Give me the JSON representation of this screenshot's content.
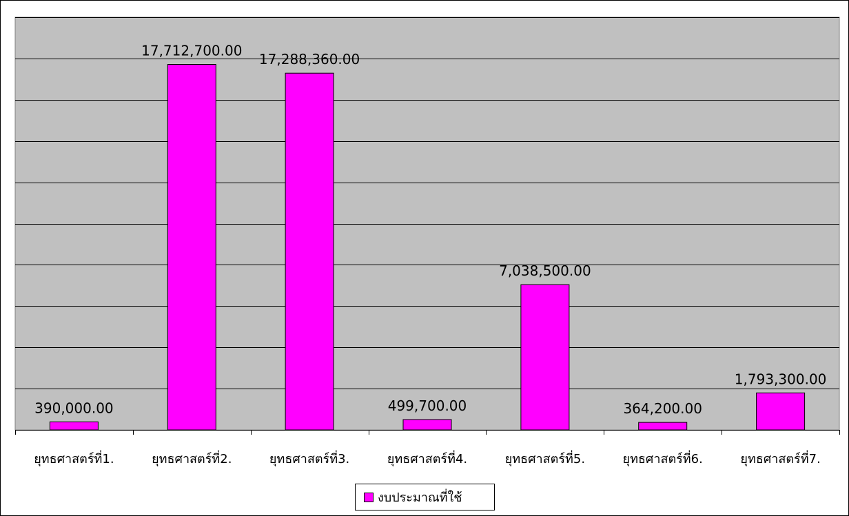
{
  "chart_data": {
    "type": "bar",
    "title": "",
    "xlabel": "",
    "ylabel": "",
    "categories": [
      "ยุทธศาสตร์ที่1.",
      "ยุทธศาสตร์ที่2.",
      "ยุทธศาสตร์ที่3.",
      "ยุทธศาสตร์ที่4.",
      "ยุทธศาสตร์ที่5.",
      "ยุทธศาสตร์ที่6.",
      "ยุทธศาสตร์ที่7."
    ],
    "series": [
      {
        "name": "งบประมาณที่ใช้",
        "values": [
          390000,
          17712700,
          17288360,
          499700,
          7038500,
          364200,
          1793300
        ],
        "labels": [
          "390,000.00",
          "17,712,700.00",
          "17,288,360.00",
          "499,700.00",
          "7,038,500.00",
          "364,200.00",
          "1,793,300.00"
        ],
        "color": "#ff00ff"
      }
    ],
    "ylim": [
      0,
      20000000
    ],
    "y_tick_step": 2000000,
    "y_tick_labels_visible": false,
    "grid": true,
    "legend_position": "bottom-center",
    "plot_background": "#c0c0c0"
  }
}
